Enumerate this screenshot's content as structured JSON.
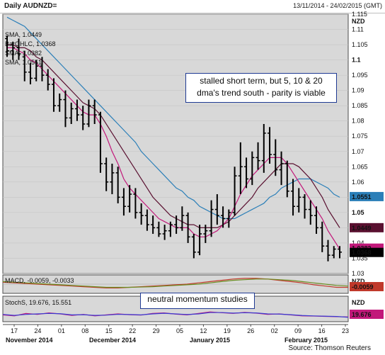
{
  "header": {
    "title": "Daily AUDNZD=",
    "range": "13/11/2014 - 24/02/2015 (GMT)"
  },
  "annotations": {
    "main": [
      "stalled short term, but 5, 10 & 20",
      "dma's trend south - parity is viable"
    ],
    "momentum": "neutral momentum studies"
  },
  "source": "Source: Thomson Reuters",
  "colors": {
    "panel_bg": "#d8d8d8",
    "bar": "#000000",
    "sma5": "#c2187a",
    "sma10": "#5a1030",
    "sma20": "#2b7fb8",
    "macd": "#c0392b",
    "macd_signal": "#6b8e23",
    "stoch_k": "#c2187a",
    "stoch_d": "#3b3bd1"
  },
  "chart_data": [
    {
      "type": "ohlc",
      "title": "Daily AUDNZD=",
      "unit_label": "NZD",
      "ylim": [
        1.03,
        1.115
      ],
      "yticks": [
        1.115,
        1.11,
        1.105,
        1.1,
        1.095,
        1.09,
        1.085,
        1.08,
        1.075,
        1.07,
        1.065,
        1.06,
        1.055,
        1.05,
        1.045,
        1.04,
        1.035,
        1.03
      ],
      "x_tick_labels": [
        "17",
        "24",
        "01",
        "08",
        "15",
        "22",
        "29",
        "05",
        "12",
        "19",
        "26",
        "02",
        "09",
        "16",
        "23"
      ],
      "x_month_labels": [
        "November 2014",
        "December 2014",
        "January 2015",
        "February 2015"
      ],
      "legend": [
        {
          "name": "SMA, 1.0449",
          "color": "#c2187a"
        },
        {
          "name": "BarOHLC, 1.0368",
          "color": "#000000"
        },
        {
          "name": "SMA, 1.0382",
          "color": "#c2187a"
        },
        {
          "name": "SMA, 1.0551",
          "color": "#2b7fb8"
        }
      ],
      "price_tags": [
        {
          "value": 1.0551,
          "label": "1.0551",
          "bg": "#2b7fb8",
          "fg": "#ffffff"
        },
        {
          "value": 1.0449,
          "label": "1.0449",
          "bg": "#5a1030",
          "fg": "#ffffff"
        },
        {
          "value": 1.0382,
          "label": "1.0382",
          "bg": "#c2187a",
          "fg": "#ffffff"
        },
        {
          "value": 1.0368,
          "label": "1.0368",
          "bg": "#000000",
          "fg": "#ffffff"
        }
      ],
      "ohlc": [
        [
          1.107,
          1.108,
          1.101,
          1.103
        ],
        [
          1.103,
          1.106,
          1.1,
          1.104
        ],
        [
          1.104,
          1.107,
          1.1,
          1.102
        ],
        [
          1.101,
          1.103,
          1.093,
          1.096
        ],
        [
          1.096,
          1.099,
          1.092,
          1.094
        ],
        [
          1.094,
          1.1,
          1.093,
          1.098
        ],
        [
          1.098,
          1.101,
          1.093,
          1.095
        ],
        [
          1.095,
          1.097,
          1.09,
          1.092
        ],
        [
          1.092,
          1.094,
          1.083,
          1.085
        ],
        [
          1.085,
          1.089,
          1.083,
          1.087
        ],
        [
          1.087,
          1.09,
          1.078,
          1.081
        ],
        [
          1.081,
          1.086,
          1.079,
          1.084
        ],
        [
          1.084,
          1.087,
          1.08,
          1.082
        ],
        [
          1.082,
          1.085,
          1.077,
          1.079
        ],
        [
          1.079,
          1.087,
          1.078,
          1.085
        ],
        [
          1.085,
          1.087,
          1.079,
          1.082
        ],
        [
          1.082,
          1.083,
          1.063,
          1.066
        ],
        [
          1.066,
          1.068,
          1.057,
          1.06
        ],
        [
          1.06,
          1.066,
          1.056,
          1.063
        ],
        [
          1.063,
          1.065,
          1.053,
          1.055
        ],
        [
          1.055,
          1.058,
          1.049,
          1.052
        ],
        [
          1.052,
          1.059,
          1.05,
          1.056
        ],
        [
          1.056,
          1.058,
          1.048,
          1.05
        ],
        [
          1.05,
          1.053,
          1.046,
          1.049
        ],
        [
          1.049,
          1.051,
          1.044,
          1.046
        ],
        [
          1.046,
          1.049,
          1.043,
          1.045
        ],
        [
          1.045,
          1.047,
          1.042,
          1.043
        ],
        [
          1.043,
          1.046,
          1.041,
          1.044
        ],
        [
          1.044,
          1.047,
          1.042,
          1.046
        ],
        [
          1.046,
          1.049,
          1.043,
          1.045
        ],
        [
          1.045,
          1.052,
          1.044,
          1.049
        ],
        [
          1.049,
          1.05,
          1.04,
          1.042
        ],
        [
          1.042,
          1.043,
          1.035,
          1.037
        ],
        [
          1.037,
          1.046,
          1.036,
          1.043
        ],
        [
          1.043,
          1.046,
          1.04,
          1.044
        ],
        [
          1.044,
          1.054,
          1.042,
          1.051
        ],
        [
          1.051,
          1.056,
          1.046,
          1.049
        ],
        [
          1.049,
          1.052,
          1.045,
          1.048
        ],
        [
          1.048,
          1.051,
          1.045,
          1.05
        ],
        [
          1.05,
          1.065,
          1.049,
          1.062
        ],
        [
          1.062,
          1.073,
          1.056,
          1.065
        ],
        [
          1.065,
          1.068,
          1.058,
          1.061
        ],
        [
          1.061,
          1.07,
          1.059,
          1.068
        ],
        [
          1.068,
          1.073,
          1.064,
          1.067
        ],
        [
          1.067,
          1.079,
          1.063,
          1.076
        ],
        [
          1.076,
          1.078,
          1.066,
          1.069
        ],
        [
          1.069,
          1.074,
          1.062,
          1.064
        ],
        [
          1.064,
          1.07,
          1.059,
          1.066
        ],
        [
          1.066,
          1.067,
          1.055,
          1.057
        ],
        [
          1.057,
          1.061,
          1.049,
          1.052
        ],
        [
          1.052,
          1.058,
          1.05,
          1.055
        ],
        [
          1.055,
          1.056,
          1.048,
          1.051
        ],
        [
          1.051,
          1.054,
          1.046,
          1.049
        ],
        [
          1.049,
          1.052,
          1.043,
          1.045
        ],
        [
          1.045,
          1.047,
          1.037,
          1.039
        ],
        [
          1.039,
          1.041,
          1.034,
          1.036
        ],
        [
          1.036,
          1.039,
          1.035,
          1.038
        ],
        [
          1.038,
          1.039,
          1.035,
          1.037
        ]
      ],
      "sma5": [
        1.104,
        1.104,
        1.103,
        1.102,
        1.1,
        1.099,
        1.097,
        1.095,
        1.093,
        1.091,
        1.089,
        1.087,
        1.085,
        1.083,
        1.082,
        1.082,
        1.079,
        1.075,
        1.07,
        1.066,
        1.061,
        1.058,
        1.056,
        1.054,
        1.052,
        1.05,
        1.048,
        1.047,
        1.046,
        1.045,
        1.045,
        1.045,
        1.043,
        1.042,
        1.042,
        1.043,
        1.044,
        1.046,
        1.048,
        1.052,
        1.056,
        1.059,
        1.062,
        1.064,
        1.066,
        1.068,
        1.068,
        1.068,
        1.066,
        1.063,
        1.06,
        1.057,
        1.054,
        1.051,
        1.048,
        1.044,
        1.041,
        1.038
      ],
      "sma10": [
        1.105,
        1.105,
        1.104,
        1.104,
        1.103,
        1.101,
        1.1,
        1.098,
        1.096,
        1.094,
        1.092,
        1.09,
        1.088,
        1.086,
        1.085,
        1.084,
        1.082,
        1.079,
        1.076,
        1.073,
        1.07,
        1.067,
        1.064,
        1.061,
        1.058,
        1.055,
        1.053,
        1.051,
        1.049,
        1.048,
        1.047,
        1.046,
        1.046,
        1.045,
        1.045,
        1.045,
        1.045,
        1.046,
        1.047,
        1.049,
        1.051,
        1.053,
        1.055,
        1.058,
        1.06,
        1.062,
        1.064,
        1.066,
        1.066,
        1.066,
        1.065,
        1.063,
        1.061,
        1.058,
        1.055,
        1.051,
        1.048,
        1.045
      ],
      "sma20": [
        1.114,
        1.113,
        1.112,
        1.111,
        1.109,
        1.107,
        1.105,
        1.103,
        1.101,
        1.099,
        1.097,
        1.095,
        1.093,
        1.091,
        1.089,
        1.087,
        1.085,
        1.083,
        1.081,
        1.079,
        1.077,
        1.075,
        1.073,
        1.07,
        1.068,
        1.066,
        1.064,
        1.062,
        1.06,
        1.058,
        1.057,
        1.055,
        1.054,
        1.052,
        1.051,
        1.05,
        1.049,
        1.048,
        1.048,
        1.048,
        1.049,
        1.05,
        1.051,
        1.052,
        1.053,
        1.055,
        1.056,
        1.058,
        1.059,
        1.06,
        1.061,
        1.061,
        1.061,
        1.06,
        1.059,
        1.058,
        1.056,
        1.055
      ]
    },
    {
      "type": "line",
      "title": "MACD, -0.0059, -0.0033",
      "unit_label": "NZD",
      "price_tag": {
        "label": "-0.0059",
        "bg": "#c0392b",
        "fg": "#ffffff"
      },
      "series": [
        {
          "name": "-0.0059",
          "color": "#c0392b",
          "values": [
            0.3,
            0.2,
            0.1,
            0.0,
            -0.1,
            -0.2,
            -0.3,
            -0.4,
            -0.5,
            -0.6,
            -0.6,
            -0.5,
            -0.4,
            -0.3,
            -0.2,
            -0.1,
            0.0,
            0.2,
            0.4,
            0.6,
            0.8,
            0.9,
            0.9,
            0.8,
            0.6,
            0.4,
            0.2,
            -0.1,
            -0.3,
            -0.5,
            -0.5
          ]
        },
        {
          "name": "-0.0033",
          "color": "#6b8e23",
          "values": [
            0.4,
            0.3,
            0.2,
            0.1,
            0.0,
            -0.1,
            -0.2,
            -0.3,
            -0.4,
            -0.5,
            -0.5,
            -0.5,
            -0.45,
            -0.4,
            -0.3,
            -0.2,
            -0.1,
            0.0,
            0.2,
            0.4,
            0.6,
            0.7,
            0.8,
            0.8,
            0.7,
            0.6,
            0.4,
            0.2,
            0.0,
            -0.2,
            -0.3
          ]
        }
      ]
    },
    {
      "type": "line",
      "title": "StochS, 19.676, 15.551",
      "unit_label": "NZD",
      "price_tag": {
        "label": "19.676",
        "bg": "#c2187a",
        "fg": "#ffffff"
      },
      "series": [
        {
          "name": "19.676",
          "color": "#c2187a",
          "values": [
            40,
            30,
            55,
            45,
            60,
            50,
            35,
            45,
            30,
            40,
            50,
            42,
            38,
            55,
            60,
            48,
            40,
            55,
            70,
            62,
            55,
            65,
            58,
            45,
            50,
            40,
            30,
            28,
            25,
            22,
            20
          ]
        },
        {
          "name": "15.551",
          "color": "#3b3bd1",
          "values": [
            45,
            35,
            45,
            50,
            55,
            52,
            40,
            42,
            35,
            38,
            46,
            44,
            40,
            50,
            56,
            50,
            44,
            50,
            64,
            64,
            58,
            62,
            60,
            50,
            48,
            42,
            34,
            30,
            27,
            24,
            16
          ]
        }
      ]
    }
  ]
}
